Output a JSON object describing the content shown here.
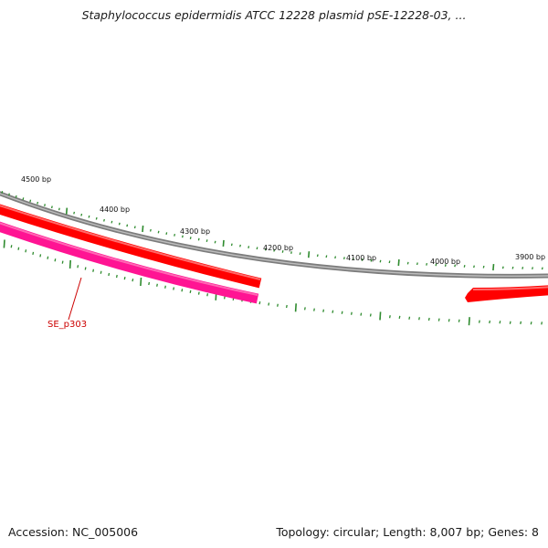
{
  "title": "Staphylococcus epidermidis ATCC 12228 plasmid pSE-12228-03, ...",
  "footer": {
    "accession": "Accession: NC_005006",
    "summary": "Topology: circular; Length: 8,007 bp; Genes: 8"
  },
  "ruler": {
    "labels": [
      "4500 bp",
      "4400 bp",
      "4300 bp",
      "4200 bp",
      "4100 bp",
      "4000 bp",
      "3900 bp"
    ]
  },
  "genes": [
    {
      "label": "SE_p303",
      "strand": "reverse",
      "color": "#ff1493"
    },
    {
      "strand": "forward",
      "color": "#ff0000"
    },
    {
      "strand": "forward",
      "color": "#ff0000"
    }
  ],
  "colors": {
    "backbone": "#808080",
    "forward_gene": "#ff0000",
    "reverse_gene": "#ff1493",
    "tick": "#2e8b2e",
    "gene_label": "#cc0000"
  }
}
